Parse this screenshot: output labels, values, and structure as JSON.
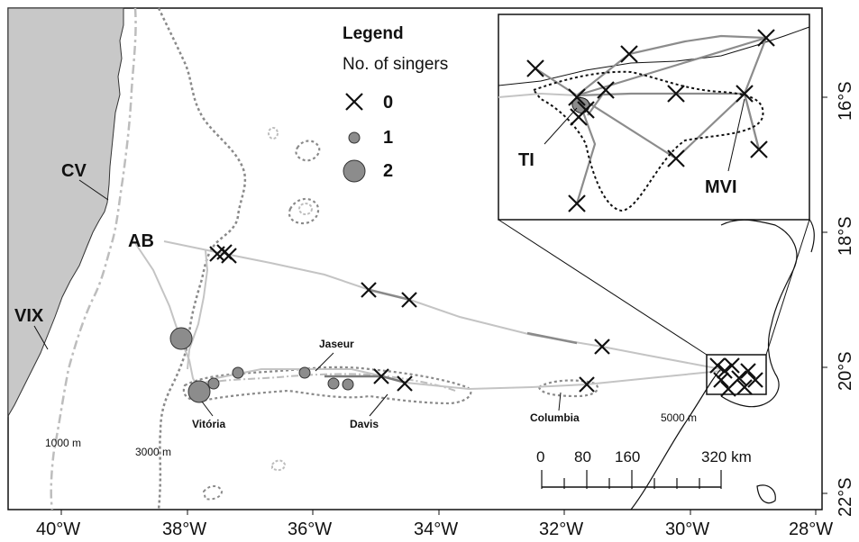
{
  "map": {
    "x_axis_labels": [
      "40°W",
      "38°W",
      "36°W",
      "34°W",
      "32°W",
      "30°W",
      "28°W"
    ],
    "y_axis_labels": [
      "16°S",
      "18°S",
      "20°S",
      "22°S"
    ],
    "colors": {
      "land": "#c8c8c8",
      "marker": "#111111",
      "singer_fill": "#8c8c8c",
      "track_light": "#c4c4c4",
      "track_dark": "#7a7a7a",
      "isobath_1000": "#bdbdbd",
      "isobath_3000": "#8a8a8a"
    },
    "place_labels": {
      "cv": "CV",
      "ab": "AB",
      "vix": "VIX",
      "jaseur": "Jaseur",
      "davis": "Davis",
      "vitoria": "Vitória",
      "columbia": "Columbia"
    },
    "isobath_labels": {
      "m1000": "1000 m",
      "m3000": "3000 m",
      "m5000": "5000 m"
    }
  },
  "legend": {
    "title": "Legend",
    "subtitle": "No. of singers",
    "items": [
      {
        "label": "0",
        "symbol": "cross-icon"
      },
      {
        "label": "1",
        "symbol": "small-circle-icon"
      },
      {
        "label": "2",
        "symbol": "large-circle-icon"
      }
    ]
  },
  "inset": {
    "labels": {
      "ti": "TI",
      "mvi": "MVI"
    }
  },
  "scale_bar": {
    "tick_labels": [
      "0",
      "80",
      "160",
      "320 km"
    ],
    "values_km": [
      0,
      80,
      160,
      320
    ]
  }
}
